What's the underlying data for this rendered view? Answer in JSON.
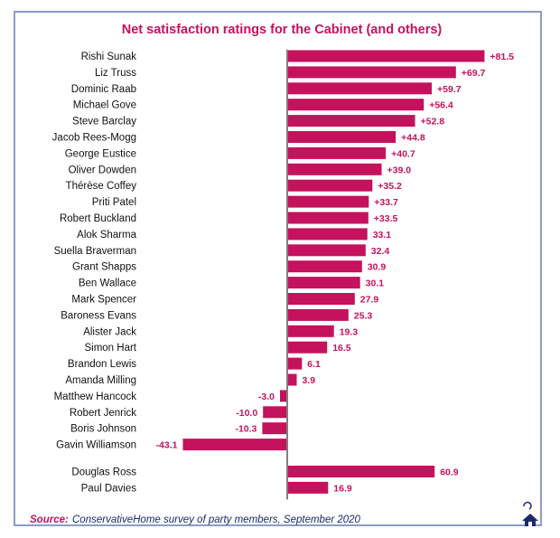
{
  "colors": {
    "bar": "#c4125d",
    "title": "#c4125d",
    "value_label": "#c4125d",
    "axis": "#7f7f7f",
    "frame": "#8d9bc7",
    "source_label": "#c4125d",
    "source_text": "#1a2a6b",
    "logo": "#1a2a6b"
  },
  "source": {
    "label": "Source:",
    "text": "ConservativeHome survey of party members, September 2020"
  },
  "logo_icon": "home-icon",
  "chart_data": {
    "type": "bar",
    "orientation": "horizontal",
    "title": "Net satisfaction ratings for the Cabinet (and others)",
    "xlabel": "",
    "ylabel": "",
    "xlim": [
      -53,
      100
    ],
    "grid": false,
    "legend": "none",
    "groups": [
      {
        "categories": [
          "Rishi Sunak",
          "Liz Truss",
          "Dominic Raab",
          "Michael Gove",
          "Steve Barclay",
          "Jacob Rees-Mogg",
          "George Eustice",
          "Oliver Dowden",
          "Thérèse Coffey",
          "Priti Patel",
          "Robert Buckland",
          "Alok Sharma",
          "Suella Braverman",
          "Grant Shapps",
          "Ben Wallace",
          "Mark Spencer",
          "Baroness Evans",
          "Alister Jack",
          "Simon Hart",
          "Brandon Lewis",
          "Amanda Milling",
          "Matthew Hancock",
          "Robert Jenrick",
          "Boris Johnson",
          "Gavin Williamson"
        ],
        "values": [
          81.5,
          69.7,
          59.7,
          56.4,
          52.8,
          44.8,
          40.7,
          39.0,
          35.2,
          33.7,
          33.5,
          33.1,
          32.4,
          30.9,
          30.1,
          27.9,
          25.3,
          19.3,
          16.5,
          6.1,
          3.9,
          -3.0,
          -10.0,
          -10.3,
          -43.1
        ],
        "value_labels": [
          "+81.5",
          "+69.7",
          "+59.7",
          "+56.4",
          "+52.8",
          "+44.8",
          "+40.7",
          "+39.0",
          "+35.2",
          "+33.7",
          "+33.5",
          "33.1",
          "32.4",
          "30.9",
          "30.1",
          "27.9",
          "25.3",
          "19.3",
          "16.5",
          "6.1",
          "3.9",
          "-3.0",
          "-10.0",
          "-10.3",
          "-43.1"
        ]
      },
      {
        "categories": [
          "Douglas Ross",
          "Paul Davies"
        ],
        "values": [
          60.9,
          16.9
        ],
        "value_labels": [
          "60.9",
          "16.9"
        ]
      }
    ]
  }
}
